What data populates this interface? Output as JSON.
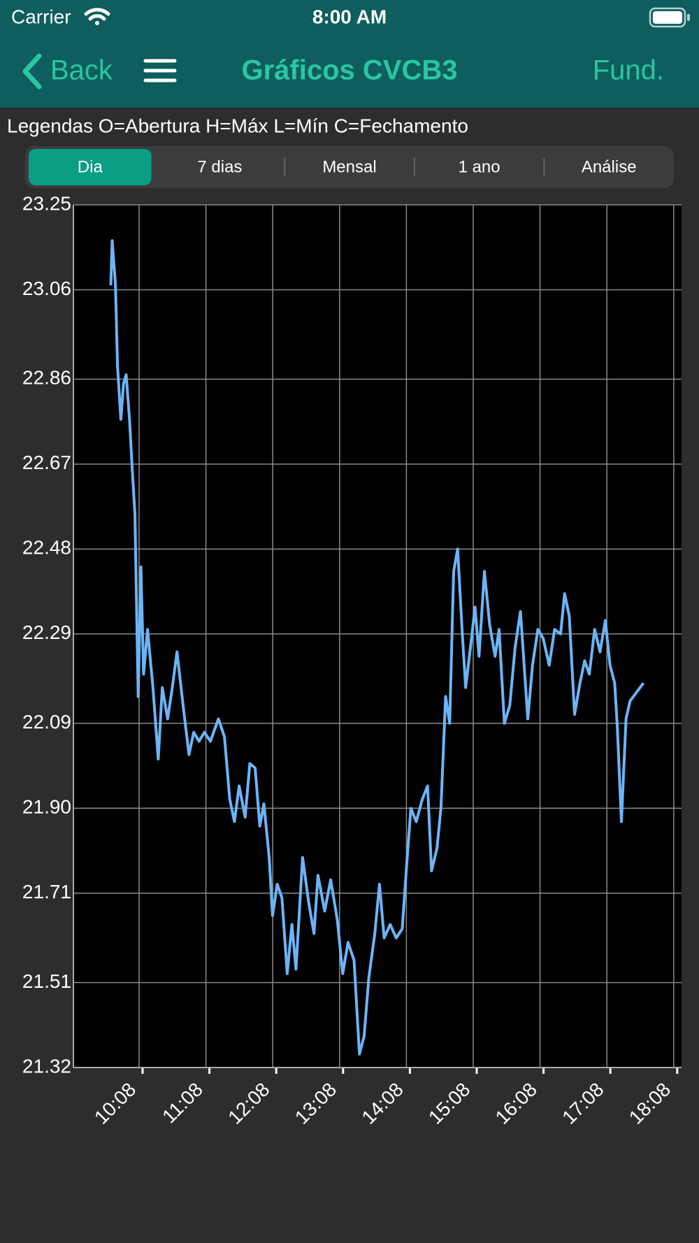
{
  "status_bar": {
    "carrier": "Carrier",
    "time": "8:00 AM"
  },
  "nav": {
    "back": "Back",
    "title": "Gráficos CVCB3",
    "right": "Fund."
  },
  "legend_text": "Legendas O=Abertura H=Máx L=Mín C=Fechamento",
  "tabs": [
    "Dia",
    "7 dias",
    "Mensal",
    "1 ano",
    "Análise"
  ],
  "selected_tab": 0,
  "chart_data": {
    "type": "line",
    "color": "#6cb4f6",
    "grid": true,
    "xlim": [
      9.15,
      18.25
    ],
    "ylim": [
      21.32,
      23.25
    ],
    "yticks": [
      23.25,
      23.06,
      22.86,
      22.67,
      22.48,
      22.29,
      22.09,
      {
        "value": 21.9,
        "label": "21.90"
      },
      21.71,
      21.51,
      21.32
    ],
    "xticks": [
      {
        "value": 10.133,
        "label": "10:08"
      },
      {
        "value": 11.133,
        "label": "11:08"
      },
      {
        "value": 12.133,
        "label": "12:08"
      },
      {
        "value": 13.133,
        "label": "13:08"
      },
      {
        "value": 14.133,
        "label": "14:08"
      },
      {
        "value": 15.133,
        "label": "15:08"
      },
      {
        "value": 16.133,
        "label": "16:08"
      },
      {
        "value": 17.133,
        "label": "17:08"
      },
      {
        "value": 18.133,
        "label": "18:08"
      }
    ],
    "x": [
      9.71,
      9.73,
      9.78,
      9.81,
      9.86,
      9.9,
      9.94,
      9.99,
      10.03,
      10.07,
      10.12,
      10.16,
      10.2,
      10.26,
      10.34,
      10.42,
      10.48,
      10.56,
      10.63,
      10.7,
      10.8,
      10.88,
      10.95,
      11.03,
      11.11,
      11.2,
      11.32,
      11.41,
      11.49,
      11.56,
      11.63,
      11.72,
      11.79,
      11.87,
      11.94,
      12.0,
      12.08,
      12.13,
      12.2,
      12.27,
      12.35,
      12.42,
      12.48,
      12.58,
      12.67,
      12.75,
      12.81,
      12.91,
      13.0,
      13.1,
      13.18,
      13.26,
      13.35,
      13.43,
      13.5,
      13.57,
      13.66,
      13.73,
      13.8,
      13.89,
      13.98,
      14.07,
      14.14,
      14.2,
      14.28,
      14.37,
      14.45,
      14.51,
      14.59,
      14.65,
      14.72,
      14.78,
      14.84,
      14.9,
      14.97,
      15.02,
      15.1,
      15.16,
      15.22,
      15.3,
      15.38,
      15.46,
      15.52,
      15.6,
      15.68,
      15.76,
      15.84,
      15.95,
      16.02,
      16.1,
      16.18,
      16.27,
      16.35,
      16.44,
      16.5,
      16.57,
      16.65,
      16.73,
      16.8,
      16.87,
      16.95,
      17.03,
      17.11,
      17.18,
      17.25,
      17.29,
      17.35,
      17.42,
      17.48,
      17.68
    ],
    "values": [
      23.07,
      23.17,
      23.07,
      22.89,
      22.77,
      22.85,
      22.87,
      22.77,
      22.66,
      22.56,
      22.15,
      22.44,
      22.2,
      22.3,
      22.17,
      22.01,
      22.17,
      22.1,
      22.17,
      22.25,
      22.12,
      22.02,
      22.07,
      22.05,
      22.07,
      22.05,
      22.1,
      22.06,
      21.92,
      21.87,
      21.95,
      21.88,
      22.0,
      21.99,
      21.86,
      21.91,
      21.79,
      21.66,
      21.73,
      21.7,
      21.53,
      21.64,
      21.54,
      21.79,
      21.69,
      21.62,
      21.75,
      21.67,
      21.74,
      21.65,
      21.53,
      21.6,
      21.56,
      21.35,
      21.39,
      21.52,
      21.62,
      21.73,
      21.61,
      21.64,
      21.61,
      21.63,
      21.78,
      21.9,
      21.87,
      21.92,
      21.95,
      21.76,
      21.81,
      21.9,
      22.15,
      22.09,
      22.43,
      22.48,
      22.29,
      22.17,
      22.27,
      22.35,
      22.24,
      22.43,
      22.31,
      22.24,
      22.3,
      22.09,
      22.13,
      22.26,
      22.34,
      22.1,
      22.22,
      22.3,
      22.28,
      22.22,
      22.3,
      22.29,
      22.38,
      22.33,
      22.11,
      22.18,
      22.23,
      22.2,
      22.3,
      22.25,
      22.32,
      22.22,
      22.18,
      22.08,
      21.87,
      22.1,
      22.14,
      22.18
    ]
  }
}
